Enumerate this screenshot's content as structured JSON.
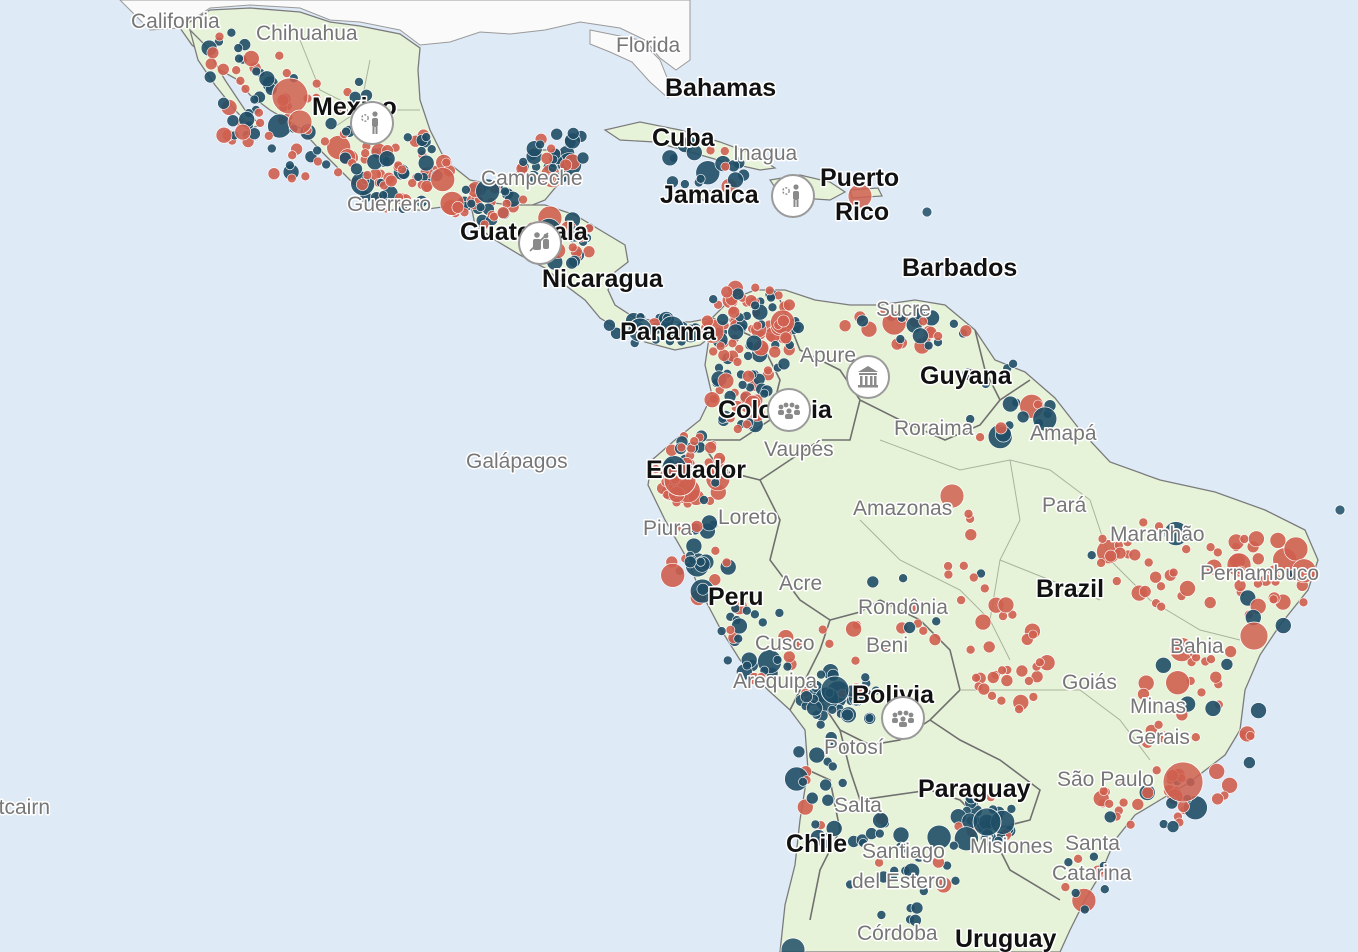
{
  "map": {
    "colors": {
      "water": "#dfeaf7",
      "land_latam": "#e7f3d8",
      "land_north": "#fafafa",
      "borders": "#7b7b7b",
      "marker_red": "#cf5f4f",
      "marker_blue": "#1f4e66",
      "marker_outline": "#ffffff"
    },
    "country_labels": [
      {
        "id": "bahamas",
        "text": "Bahamas"
      },
      {
        "id": "cuba",
        "text": "Cuba"
      },
      {
        "id": "jamaica",
        "text": "Jamaica"
      },
      {
        "id": "puerto",
        "text": "Puerto"
      },
      {
        "id": "rico",
        "text": "Rico"
      },
      {
        "id": "barbados",
        "text": "Barbados"
      },
      {
        "id": "mexico",
        "text": "Mexico"
      },
      {
        "id": "guatemala",
        "text": "Guatemala"
      },
      {
        "id": "nicaragua",
        "text": "Nicaragua"
      },
      {
        "id": "panama",
        "text": "Panama"
      },
      {
        "id": "guyana",
        "text": "Guyana"
      },
      {
        "id": "colombia",
        "text": "Colombia"
      },
      {
        "id": "ecuador",
        "text": "Ecuador"
      },
      {
        "id": "brazil",
        "text": "Brazil"
      },
      {
        "id": "peru",
        "text": "Peru"
      },
      {
        "id": "bolivia",
        "text": "Bolivia"
      },
      {
        "id": "paraguay",
        "text": "Paraguay"
      },
      {
        "id": "chile",
        "text": "Chile"
      },
      {
        "id": "uruguay",
        "text": "Uruguay"
      }
    ],
    "region_labels": [
      {
        "id": "california",
        "text": "California"
      },
      {
        "id": "chihuahua",
        "text": "Chihuahua"
      },
      {
        "id": "florida",
        "text": "Florida"
      },
      {
        "id": "inagua",
        "text": "Inagua"
      },
      {
        "id": "campeche",
        "text": "Campeche"
      },
      {
        "id": "guerrero",
        "text": "Guerrero"
      },
      {
        "id": "sucre",
        "text": "Sucre"
      },
      {
        "id": "apure",
        "text": "Apure"
      },
      {
        "id": "roraima",
        "text": "Roraima"
      },
      {
        "id": "amapa",
        "text": "Amapá"
      },
      {
        "id": "vaupes",
        "text": "Vaupés"
      },
      {
        "id": "galapagos",
        "text": "Galápagos"
      },
      {
        "id": "amazonas",
        "text": "Amazonas"
      },
      {
        "id": "para",
        "text": "Pará"
      },
      {
        "id": "maranhao",
        "text": "Maranhão"
      },
      {
        "id": "piura",
        "text": "Piura"
      },
      {
        "id": "loreto",
        "text": "Loreto"
      },
      {
        "id": "pernambuco",
        "text": "Pernambuco"
      },
      {
        "id": "acre",
        "text": "Acre"
      },
      {
        "id": "rondonia",
        "text": "Rondônia"
      },
      {
        "id": "beni",
        "text": "Beni"
      },
      {
        "id": "cusco",
        "text": "Cusco"
      },
      {
        "id": "bahia",
        "text": "Bahia"
      },
      {
        "id": "arequipa",
        "text": "Arequipa"
      },
      {
        "id": "goias",
        "text": "Goiás"
      },
      {
        "id": "minas",
        "text": "Minas"
      },
      {
        "id": "gerais",
        "text": "Gerais"
      },
      {
        "id": "potosi",
        "text": "Potosí"
      },
      {
        "id": "saopaulo",
        "text": "São Paulo"
      },
      {
        "id": "salta",
        "text": "Salta"
      },
      {
        "id": "santiago",
        "text": "Santiago"
      },
      {
        "id": "delestero",
        "text": "del Estero"
      },
      {
        "id": "santa",
        "text": "Santa"
      },
      {
        "id": "catarina",
        "text": "Catarina"
      },
      {
        "id": "cordoba",
        "text": "Córdoba"
      },
      {
        "id": "pitcairn",
        "text": "Pitcairn"
      },
      {
        "id": "misiones",
        "text": "Misiones"
      }
    ],
    "event_icons": [
      {
        "id": "mexico-icon",
        "type": "protest-icon"
      },
      {
        "id": "guatemala-icon",
        "type": "armed-group-icon"
      },
      {
        "id": "haiti-icon",
        "type": "violence-icon"
      },
      {
        "id": "venezuela-icon",
        "type": "government-building-icon"
      },
      {
        "id": "colombia-icon",
        "type": "crowd-icon"
      },
      {
        "id": "bolivia-icon",
        "type": "crowd-icon"
      }
    ]
  }
}
